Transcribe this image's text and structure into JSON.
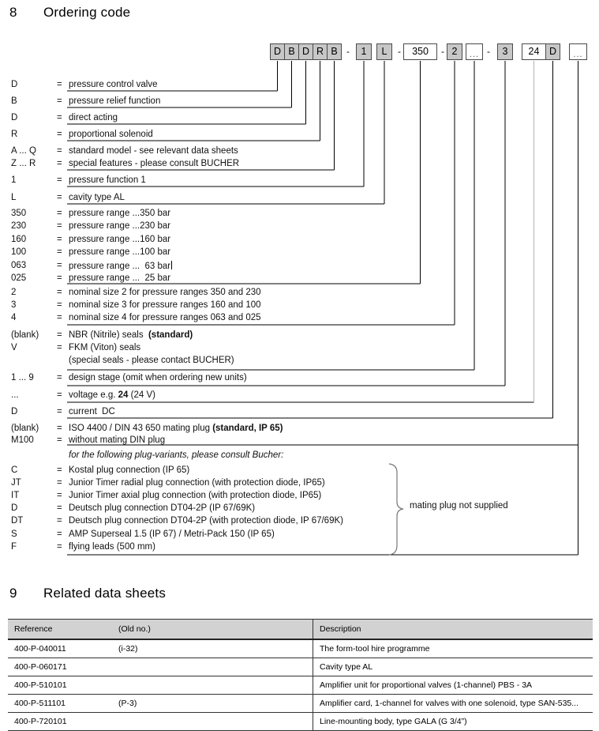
{
  "sections": {
    "ordering_code": {
      "number": "8",
      "title": "Ordering code"
    },
    "related_sheets": {
      "number": "9",
      "title": "Related data sheets"
    }
  },
  "ordering_code": {
    "equals": "=",
    "boxes": [
      {
        "label": "D",
        "variant": "gray"
      },
      {
        "label": "B",
        "variant": "gray"
      },
      {
        "label": "D",
        "variant": "gray"
      },
      {
        "label": "R",
        "variant": "gray"
      },
      {
        "label": "B",
        "variant": "gray"
      },
      {
        "label": "-",
        "variant": "dash"
      },
      {
        "label": "1",
        "variant": "gray"
      },
      {
        "label": "L",
        "variant": "gray"
      },
      {
        "label": "-",
        "variant": "dash"
      },
      {
        "label": "350",
        "variant": "white"
      },
      {
        "label": "-",
        "variant": "dash"
      },
      {
        "label": "2",
        "variant": "gray"
      },
      {
        "label": "...",
        "variant": "white-dots"
      },
      {
        "label": "-",
        "variant": "dash"
      },
      {
        "label": "3",
        "variant": "gray"
      },
      {
        "label": "24",
        "variant": "white"
      },
      {
        "label": "D",
        "variant": "gray"
      },
      {
        "label": "...",
        "variant": "white-dots"
      }
    ],
    "rows": [
      {
        "code": "D",
        "desc": "pressure control valve"
      },
      {
        "code": "B",
        "desc": "pressure relief function"
      },
      {
        "code": "D",
        "desc": "direct acting"
      },
      {
        "code": "R",
        "desc": "proportional solenoid"
      },
      {
        "code": "A ... Q",
        "desc": "standard model - see relevant data sheets"
      },
      {
        "code": "Z ... R",
        "desc": "special features - please consult BUCHER"
      },
      {
        "code": "1",
        "desc": "pressure function 1"
      },
      {
        "code": "L",
        "desc": "cavity type AL"
      },
      {
        "code": "350",
        "desc": "pressure range ...350 bar"
      },
      {
        "code": "230",
        "desc": "pressure range ...230 bar"
      },
      {
        "code": "160",
        "desc": "pressure range ...160 bar"
      },
      {
        "code": "100",
        "desc": "pressure range ...100 bar"
      },
      {
        "code": "063",
        "desc": "pressure range ...  63 bar",
        "cursor": true
      },
      {
        "code": "025",
        "desc": "pressure range ...  25 bar"
      },
      {
        "code": "2",
        "desc": "nominal size 2 for pressure ranges 350 and 230"
      },
      {
        "code": "3",
        "desc": "nominal size 3 for pressure ranges 160 and 100"
      },
      {
        "code": "4",
        "desc": "nominal size 4 for pressure ranges 063 and 025"
      },
      {
        "code": "(blank)",
        "desc_parts": [
          {
            "text": "NBR (Nitrile) seals  ",
            "bold": false
          },
          {
            "text": "(standard)",
            "bold": true
          }
        ]
      },
      {
        "code": "V",
        "desc": "FKM (Viton) seals"
      },
      {
        "code": "",
        "desc": "(special seals - please contact BUCHER)"
      },
      {
        "code": "1 ... 9",
        "desc": "design stage (omit when ordering new units)"
      },
      {
        "code": "...",
        "desc_parts": [
          {
            "text": "voltage e.g. ",
            "bold": false
          },
          {
            "text": "24",
            "bold": true
          },
          {
            "text": " (24 V)",
            "bold": false
          }
        ]
      },
      {
        "code": "D",
        "desc": "current  DC"
      },
      {
        "code": "(blank)",
        "desc_parts": [
          {
            "text": "ISO 4400 / DIN 43 650 mating plug ",
            "bold": false
          },
          {
            "text": "(standard, IP 65)",
            "bold": true
          }
        ]
      },
      {
        "code": "M100",
        "desc": "without mating DIN plug"
      },
      {
        "code": "",
        "desc": "for the following plug-variants, please consult Bucher:",
        "italic": true
      },
      {
        "code": "C",
        "desc": "Kostal plug connection (IP 65)"
      },
      {
        "code": "JT",
        "desc": "Junior Timer radial plug connection (with protection diode, IP65)"
      },
      {
        "code": "IT",
        "desc": "Junior Timer axial plug connection (with protection diode, IP65)"
      },
      {
        "code": "D",
        "desc": "Deutsch plug connection DT04-2P (IP 67/69K)"
      },
      {
        "code": "DT",
        "desc": "Deutsch plug connection DT04-2P (with protection diode, IP 67/69K)"
      },
      {
        "code": "S",
        "desc": "AMP Superseal 1.5 (IP 67) / Metri-Pack 150 (IP 65)"
      },
      {
        "code": "F",
        "desc": "flying leads (500 mm)"
      }
    ],
    "note": "mating plug not supplied"
  },
  "table": {
    "headers": [
      "Reference",
      "(Old no.)",
      "Description"
    ],
    "rows": [
      [
        "400-P-040011",
        "(i-32)",
        "The form-tool hire programme"
      ],
      [
        "400-P-060171",
        "",
        "Cavity type AL"
      ],
      [
        "400-P-510101",
        "",
        "Amplifier unit for proportional valves (1-channel) PBS - 3A"
      ],
      [
        "400-P-511101",
        "(P-3)",
        "Amplifier card, 1-channel for valves with one solenoid, type SAN-535..."
      ],
      [
        "400-P-720101",
        "",
        "Line-mounting body, type GALA (G 3/4”)"
      ]
    ]
  }
}
